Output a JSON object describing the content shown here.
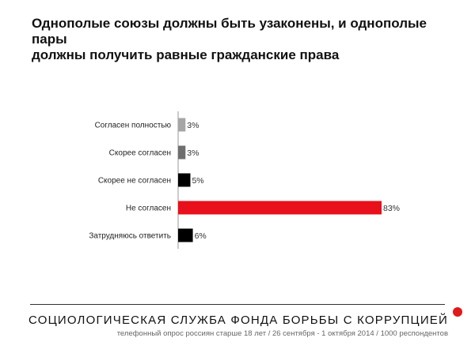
{
  "chart_data": {
    "type": "bar",
    "orientation": "horizontal",
    "title": "Однополые союзы должны быть узаконены, и однополые пары должны получить равные гражданские права",
    "title_lines": [
      "Однополые союзы должны быть узаконены, и однополые пары",
      "должны получить равные гражданские права"
    ],
    "categories": [
      "Согласен полностью",
      "Скорее согласен",
      "Скорее не согласен",
      "Не согласен",
      "Затрудняюсь ответить"
    ],
    "values": [
      3,
      3,
      5,
      83,
      6
    ],
    "value_labels": [
      "3%",
      "3%",
      "5%",
      "83%",
      "6%"
    ],
    "unit": "%",
    "xlim": [
      0,
      83
    ],
    "grid": false,
    "legend": "none",
    "colors": [
      "#a6a6a6",
      "#6e6e6e",
      "#000000",
      "#e8101a",
      "#000000"
    ]
  },
  "footer": {
    "organization": "СОЦИОЛОГИЧЕСКАЯ СЛУЖБА ФОНДА БОРЬБЫ С КОРРУПЦИЕЙ",
    "note": "телефонный опрос россиян старше 18 лет / 26 сентября - 1 октября 2014 / 1000 респондентов",
    "accent_color": "#e01a1a"
  }
}
